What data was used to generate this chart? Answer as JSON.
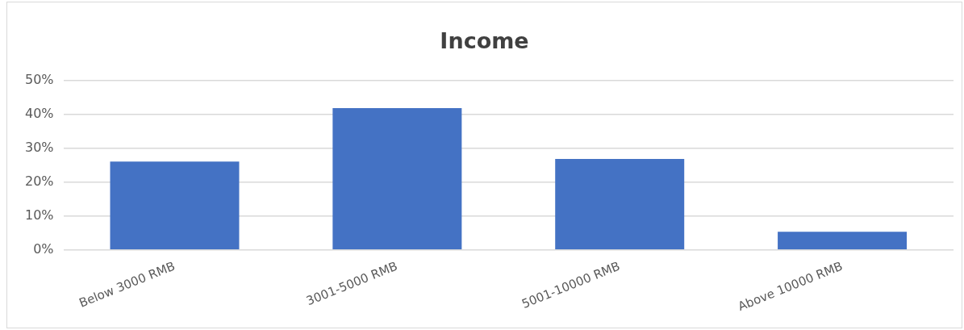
{
  "chart_data": {
    "type": "bar",
    "title": "Income",
    "categories": [
      "Below 3000 RMB",
      "3001-5000 RMB",
      "5001-10000 RMB",
      "Above 10000 RMB"
    ],
    "values": [
      26,
      41.8,
      26.8,
      5.3
    ],
    "color": "#4472c4",
    "ylim": [
      0,
      50
    ],
    "yticks": [
      {
        "value": 0,
        "label": "0%"
      },
      {
        "value": 10,
        "label": "10%"
      },
      {
        "value": 20,
        "label": "20%"
      },
      {
        "value": 30,
        "label": "30%"
      },
      {
        "value": 40,
        "label": "40%"
      },
      {
        "value": 50,
        "label": "50%"
      }
    ],
    "grid": "y",
    "legend": false
  }
}
